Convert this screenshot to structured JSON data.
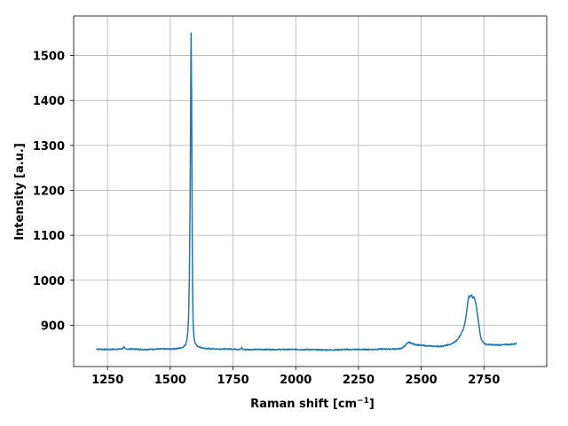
{
  "chart_data": {
    "type": "line",
    "title": "",
    "xlabel": "Raman shift [cm",
    "xlabel_sup": "−1",
    "xlabel_suffix": "]",
    "ylabel": "Intensity [a.u.]",
    "xlim": [
      1115,
      3000
    ],
    "ylim": [
      808,
      1588
    ],
    "xticks": [
      1250,
      1500,
      1750,
      2000,
      2250,
      2500,
      2750
    ],
    "xtick_labels": [
      "1250",
      "1500",
      "1750",
      "2000",
      "2250",
      "2500",
      "2750"
    ],
    "yticks": [
      900,
      1000,
      1100,
      1200,
      1300,
      1400,
      1500
    ],
    "ytick_labels": [
      "900",
      "1000",
      "1100",
      "1200",
      "1300",
      "1400",
      "1500"
    ],
    "grid": true,
    "line_color": "#1f77b4",
    "series": [
      {
        "x": [
          1205,
          1250,
          1300,
          1310,
          1315,
          1320,
          1350,
          1400,
          1450,
          1500,
          1530,
          1550,
          1560,
          1565,
          1570,
          1573,
          1576,
          1579,
          1581,
          1583,
          1585,
          1587,
          1589,
          1591,
          1594,
          1598,
          1605,
          1615,
          1640,
          1700,
          1750,
          1780,
          1785,
          1790,
          1850,
          1900,
          1950,
          2000,
          2050,
          2100,
          2150,
          2200,
          2250,
          2300,
          2350,
          2400,
          2420,
          2430,
          2440,
          2450,
          2460,
          2475,
          2500,
          2550,
          2580,
          2600,
          2620,
          2640,
          2650,
          2660,
          2670,
          2675,
          2680,
          2685,
          2690,
          2695,
          2700,
          2705,
          2710,
          2715,
          2720,
          2725,
          2730,
          2735,
          2740,
          2750,
          2760,
          2800,
          2850,
          2880
        ],
        "y": [
          847,
          846,
          847,
          848,
          852,
          847,
          847,
          846,
          847,
          847,
          848,
          851,
          856,
          865,
          885,
          920,
          1000,
          1180,
          1380,
          1550,
          1400,
          1150,
          980,
          905,
          875,
          862,
          855,
          851,
          848,
          847,
          847,
          846,
          850,
          846,
          846,
          846,
          846,
          846,
          846,
          845,
          845,
          846,
          846,
          846,
          847,
          847,
          848,
          852,
          857,
          862,
          860,
          857,
          855,
          853,
          853,
          855,
          858,
          865,
          872,
          882,
          895,
          908,
          925,
          950,
          966,
          962,
          968,
          960,
          962,
          955,
          940,
          920,
          900,
          880,
          868,
          860,
          857,
          856,
          857,
          859
        ]
      }
    ]
  }
}
